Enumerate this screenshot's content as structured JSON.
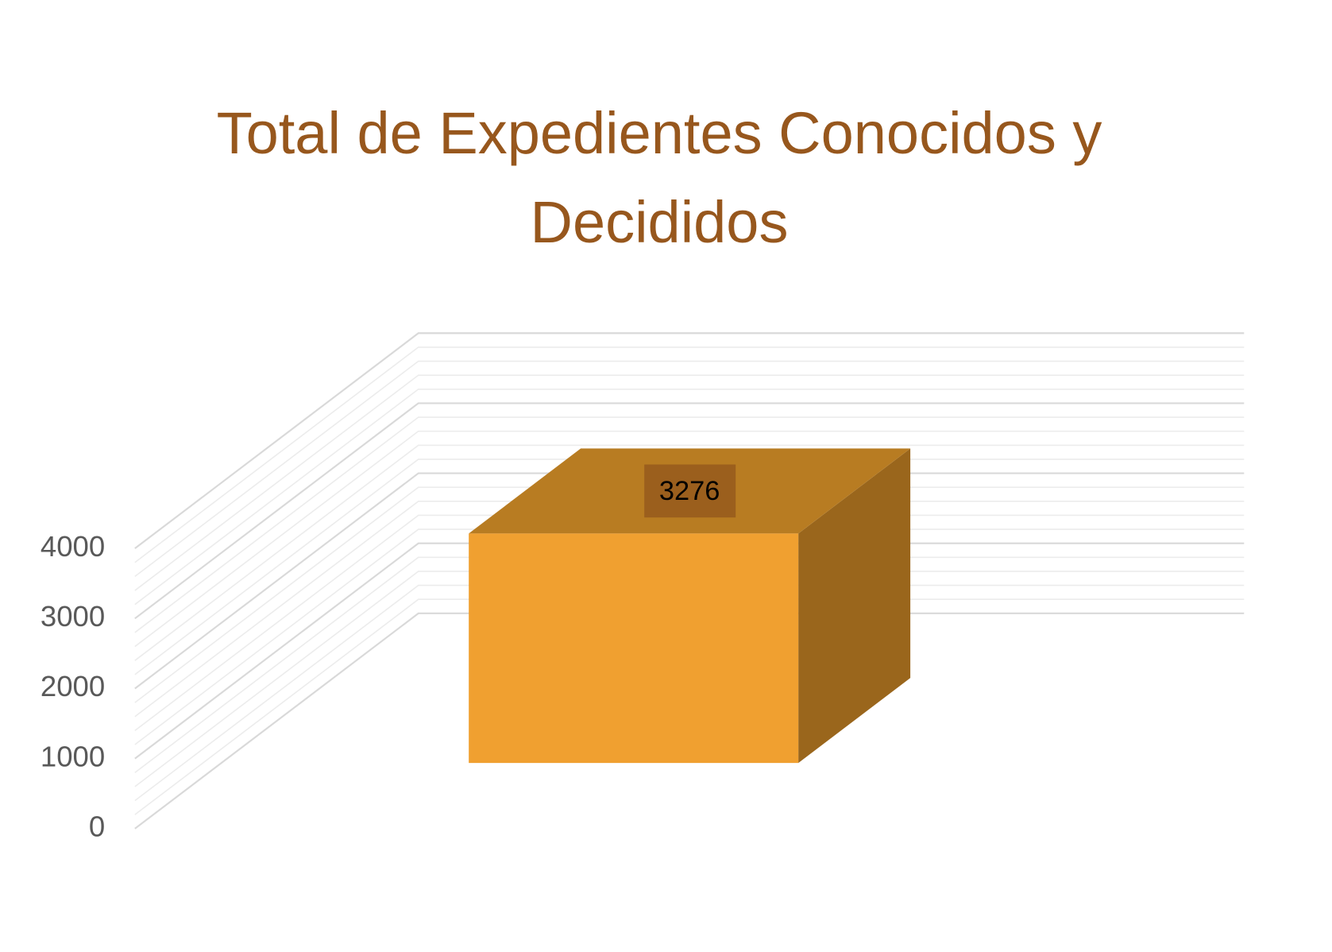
{
  "chart_data": {
    "type": "bar3d",
    "title": "Total de Expedientes Conocidos y Decididos",
    "categories": [
      null
    ],
    "values": [
      3276
    ],
    "colors": {
      "front": "#f0a030",
      "top": "#b87c22",
      "side": "#9a661c",
      "label_box": "#9b5f1d"
    },
    "ylim": [
      0,
      4000
    ],
    "yticks": [
      0,
      1000,
      2000,
      3000,
      4000
    ],
    "grid": true
  }
}
